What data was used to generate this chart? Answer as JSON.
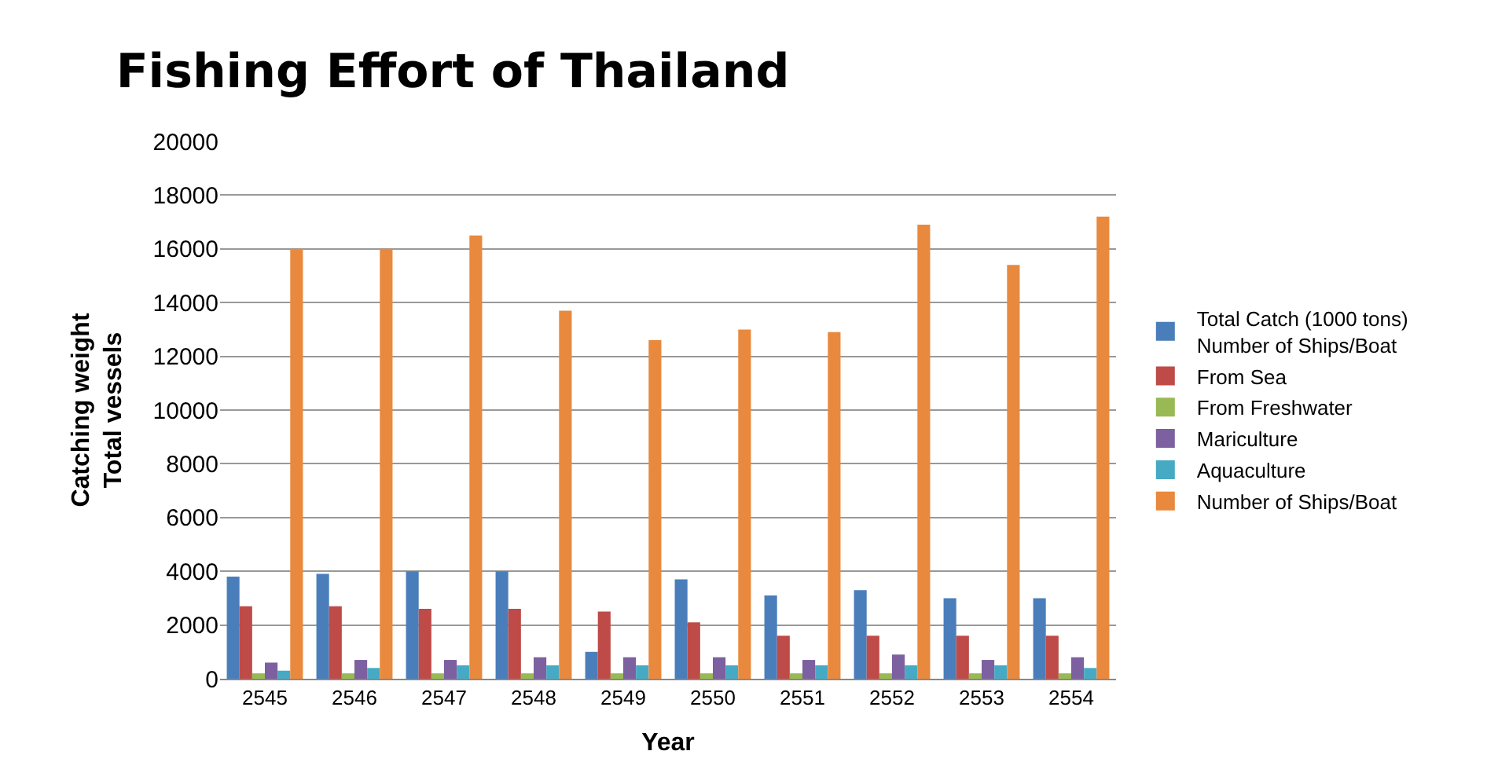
{
  "chart_data": {
    "type": "bar",
    "title": "Fishing Effort of Thailand",
    "xlabel": "Year",
    "ylabel": "Catching weight\nTotal vessels",
    "categories": [
      "2545",
      "2546",
      "2547",
      "2548",
      "2549",
      "2550",
      "2551",
      "2552",
      "2553",
      "2554"
    ],
    "series": [
      {
        "name": "Total Catch (1000 tons)\nNumber of Ships/Boat",
        "color": "#4a7ebb",
        "values": [
          3800,
          3900,
          4000,
          4000,
          1000,
          3700,
          3100,
          3300,
          3000,
          3000
        ]
      },
      {
        "name": "From Sea",
        "color": "#be4b48",
        "values": [
          2700,
          2700,
          2600,
          2600,
          2500,
          2100,
          1600,
          1600,
          1600,
          1600
        ]
      },
      {
        "name": "From Freshwater",
        "color": "#98b954",
        "values": [
          200,
          200,
          200,
          200,
          200,
          200,
          200,
          200,
          200,
          200
        ]
      },
      {
        "name": "Mariculture",
        "color": "#7d60a0",
        "values": [
          600,
          700,
          700,
          800,
          800,
          800,
          700,
          900,
          700,
          800
        ]
      },
      {
        "name": "Aquaculture",
        "color": "#46aac5",
        "values": [
          300,
          400,
          500,
          500,
          500,
          500,
          500,
          500,
          500,
          400
        ]
      },
      {
        "name": "Number of Ships/Boat",
        "color": "#e8893d",
        "values": [
          16000,
          16000,
          16500,
          13700,
          12600,
          13000,
          12900,
          16900,
          15400,
          17200
        ]
      }
    ],
    "ylim": [
      0,
      20000
    ],
    "yticks": [
      0,
      2000,
      4000,
      6000,
      8000,
      10000,
      12000,
      14000,
      16000,
      18000,
      20000
    ],
    "grid": "y",
    "legend": "right"
  }
}
